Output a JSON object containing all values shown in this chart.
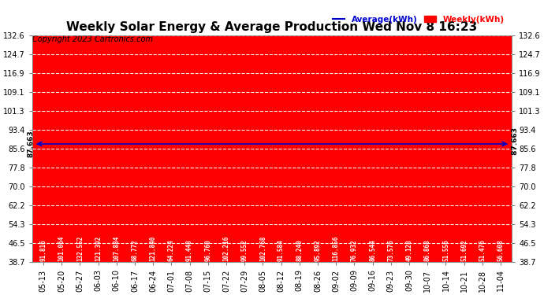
{
  "title": "Weekly Solar Energy & Average Production Wed Nov 8 16:23",
  "copyright": "Copyright 2023 Cartronics.com",
  "categories": [
    "05-13",
    "05-20",
    "05-27",
    "06-03",
    "06-10",
    "06-17",
    "06-24",
    "07-01",
    "07-08",
    "07-15",
    "07-22",
    "07-29",
    "08-05",
    "08-12",
    "08-19",
    "08-26",
    "09-02",
    "09-09",
    "09-16",
    "09-23",
    "09-30",
    "10-07",
    "10-14",
    "10-21",
    "10-28",
    "11-04"
  ],
  "values": [
    91.816,
    101.064,
    132.552,
    121.392,
    107.884,
    68.772,
    121.84,
    64.224,
    91.448,
    96.76,
    102.216,
    99.552,
    102.768,
    91.584,
    88.24,
    95.892,
    116.856,
    76.932,
    86.544,
    73.576,
    49.128,
    86.868,
    51.556,
    51.692,
    51.476,
    56.608
  ],
  "average": 87.663,
  "bar_color": "#ff0000",
  "average_color": "#0000cc",
  "background_color": "#ffffff",
  "grid_color": "#ffffff",
  "legend_avg_color": "#0000cc",
  "legend_weekly_color": "#ff0000",
  "ymin": 38.7,
  "ymax": 132.6,
  "yticks": [
    38.7,
    46.5,
    54.3,
    62.2,
    70.0,
    77.8,
    85.6,
    93.4,
    101.3,
    109.1,
    116.9,
    124.7,
    132.6
  ],
  "average_label": "87.663",
  "title_fontsize": 11,
  "bar_value_fontsize": 5.5,
  "tick_fontsize": 7,
  "copyright_fontsize": 7
}
